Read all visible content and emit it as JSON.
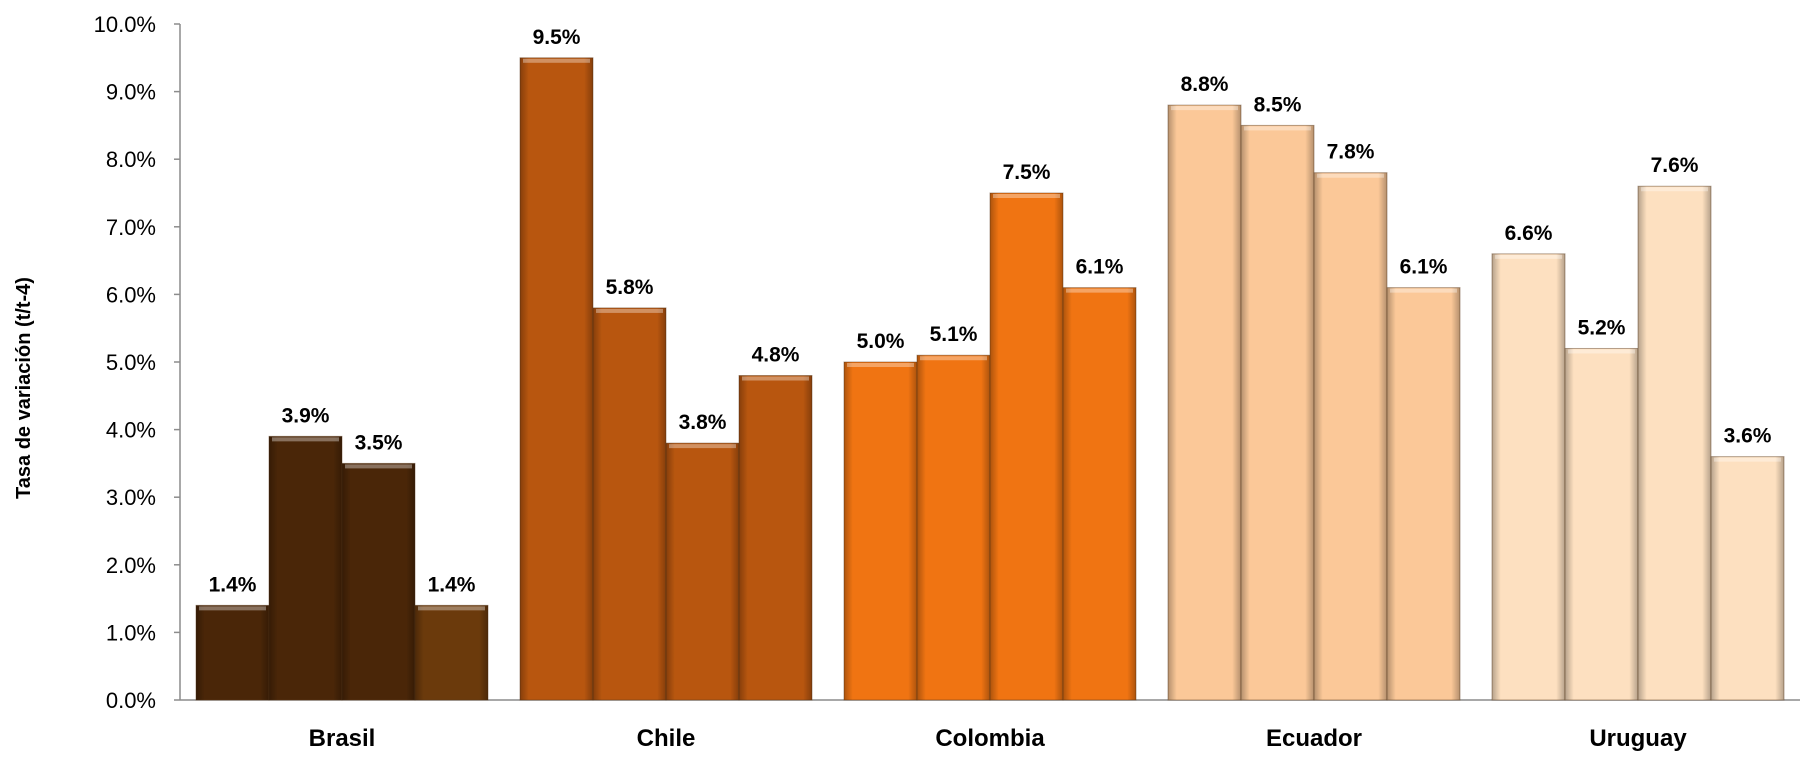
{
  "chart_data": {
    "type": "bar",
    "ylabel": "Tasa de variación (t/t-4)",
    "xlabel": "",
    "ylim": [
      0,
      10
    ],
    "yticks": [
      "0.0%",
      "1.0%",
      "2.0%",
      "3.0%",
      "4.0%",
      "5.0%",
      "6.0%",
      "7.0%",
      "8.0%",
      "9.0%",
      "10.0%"
    ],
    "grid": false,
    "legend": "none",
    "groups": [
      {
        "category": "Brasil",
        "values": [
          1.4,
          3.9,
          3.5,
          1.4
        ],
        "labels": [
          "1.4%",
          "3.9%",
          "3.5%",
          "1.4%"
        ],
        "colors": [
          "#4a2608",
          "#4a2608",
          "#4a2608",
          "#6b3a0c"
        ]
      },
      {
        "category": "Chile",
        "values": [
          9.5,
          5.8,
          3.8,
          4.8
        ],
        "labels": [
          "9.5%",
          "5.8%",
          "3.8%",
          "4.8%"
        ],
        "colors": [
          "#b8560f",
          "#b8560f",
          "#b8560f",
          "#b8560f"
        ]
      },
      {
        "category": "Colombia",
        "values": [
          5.0,
          5.1,
          7.5,
          6.1
        ],
        "labels": [
          "5.0%",
          "5.1%",
          "7.5%",
          "6.1%"
        ],
        "colors": [
          "#f07412",
          "#f07412",
          "#f07412",
          "#f07412"
        ]
      },
      {
        "category": "Ecuador",
        "values": [
          8.8,
          8.5,
          7.8,
          6.1
        ],
        "labels": [
          "8.8%",
          "8.5%",
          "7.8%",
          "6.1%"
        ],
        "colors": [
          "#fbc898",
          "#fbc898",
          "#fbc898",
          "#fbc898"
        ]
      },
      {
        "category": "Uruguay",
        "values": [
          6.6,
          5.2,
          7.6,
          3.6
        ],
        "labels": [
          "6.6%",
          "5.2%",
          "7.6%",
          "3.6%"
        ],
        "colors": [
          "#fde0c0",
          "#fde0c0",
          "#fde0c0",
          "#fde0c0"
        ]
      }
    ]
  }
}
